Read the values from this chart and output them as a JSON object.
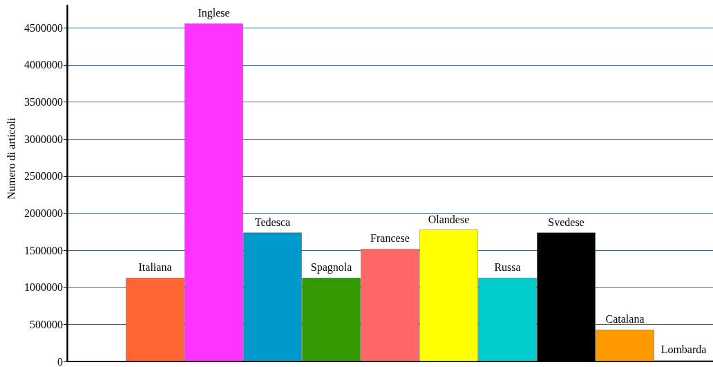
{
  "chart_data": {
    "type": "bar",
    "ylabel": "Numero di articoli",
    "categories": [
      null,
      "Italiana",
      "Inglese",
      "Tedesca",
      "Spagnola",
      "Francese",
      "Olandese",
      "Russa",
      "Svedese",
      "Catalana",
      "Lombarda"
    ],
    "values": [
      null,
      1130000,
      4560000,
      1740000,
      1130000,
      1520000,
      1780000,
      1130000,
      1740000,
      430000,
      20000
    ],
    "colors": [
      null,
      "#ff6633",
      "#ff33ff",
      "#0099cc",
      "#339900",
      "#ff6666",
      "#ffff00",
      "#00cccc",
      "#000000",
      "#ff9900",
      "#c0c0c0"
    ],
    "ylim": [
      0,
      4800000
    ],
    "yticks": [
      0,
      500000,
      1000000,
      1500000,
      2000000,
      2500000,
      3000000,
      3500000,
      4000000,
      4500000
    ],
    "grid": "y",
    "tick_labels": "y"
  }
}
